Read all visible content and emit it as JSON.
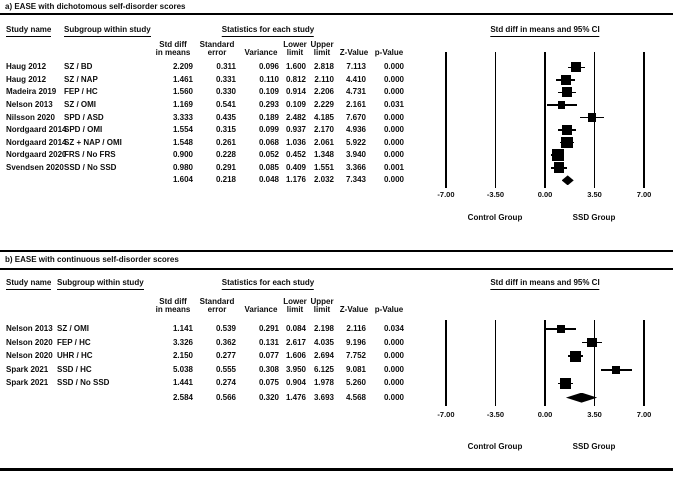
{
  "figure": {
    "panel_a": {
      "title": "a) EASE with dichotomous self-disorder scores",
      "headers": {
        "study": "Study name",
        "subgroup": "Subgroup within study",
        "stats": "Statistics for each study",
        "plot": "Std diff in means and 95% CI"
      }
    },
    "panel_b": {
      "title": "b) EASE with continuous self-disorder scores",
      "headers": {
        "study": "Study name",
        "subgroup": "Subgroup within study",
        "stats": "Statistics for each study",
        "plot": "Std diff in means and 95% CI"
      }
    },
    "stat_column_headers": [
      [
        "Std diff",
        "in means"
      ],
      [
        "Standard",
        "error"
      ],
      [
        "Variance"
      ],
      [
        "Lower",
        "limit"
      ],
      [
        "Upper",
        "limit"
      ],
      [
        "Z-Value"
      ],
      [
        "p-Value"
      ]
    ],
    "axis": {
      "tick_labels": [
        "-7.00",
        "-3.50",
        "0.00",
        "3.50",
        "7.00"
      ],
      "left_group": "Control Group",
      "right_group": "SSD Group"
    },
    "colors": {
      "ink": "#000000",
      "background": "#ffffff"
    }
  },
  "chart_data": [
    {
      "type": "forest",
      "panel": "a",
      "title": "a) EASE with dichotomous self-disorder scores",
      "x_axis_ticks": [
        -7,
        -3.5,
        0,
        3.5,
        7
      ],
      "xlim": [
        -7,
        7
      ],
      "group_labels": [
        "Control Group",
        "SSD Group"
      ],
      "rows": [
        {
          "study": "Haug 2012",
          "subgroup": "SZ / BD",
          "std_diff": 2.209,
          "std_err": 0.311,
          "variance": 0.096,
          "lower": 1.6,
          "upper": 2.818,
          "z": 7.113,
          "p": 0.0
        },
        {
          "study": "Haug 2012",
          "subgroup": "SZ / NAP",
          "std_diff": 1.461,
          "std_err": 0.331,
          "variance": 0.11,
          "lower": 0.812,
          "upper": 2.11,
          "z": 4.41,
          "p": 0.0
        },
        {
          "study": "Madeira 2019",
          "subgroup": "FEP / HC",
          "std_diff": 1.56,
          "std_err": 0.33,
          "variance": 0.109,
          "lower": 0.914,
          "upper": 2.206,
          "z": 4.731,
          "p": 0.0
        },
        {
          "study": "Nelson 2013",
          "subgroup": "SZ / OMI",
          "std_diff": 1.169,
          "std_err": 0.541,
          "variance": 0.293,
          "lower": 0.109,
          "upper": 2.229,
          "z": 2.161,
          "p": 0.031
        },
        {
          "study": "Nilsson 2020",
          "subgroup": "SPD / ASD",
          "std_diff": 3.333,
          "std_err": 0.435,
          "variance": 0.189,
          "lower": 2.482,
          "upper": 4.185,
          "z": 7.67,
          "p": 0.0
        },
        {
          "study": "Nordgaard 2014",
          "subgroup": "SPD / OMI",
          "std_diff": 1.554,
          "std_err": 0.315,
          "variance": 0.099,
          "lower": 0.937,
          "upper": 2.17,
          "z": 4.936,
          "p": 0.0
        },
        {
          "study": "Nordgaard 2014",
          "subgroup": "SZ + NAP / OMI",
          "std_diff": 1.548,
          "std_err": 0.261,
          "variance": 0.068,
          "lower": 1.036,
          "upper": 2.061,
          "z": 5.922,
          "p": 0.0
        },
        {
          "study": "Nordgaard 2020",
          "subgroup": "FRS / No FRS",
          "std_diff": 0.9,
          "std_err": 0.228,
          "variance": 0.052,
          "lower": 0.452,
          "upper": 1.348,
          "z": 3.94,
          "p": 0.0
        },
        {
          "study": "Svendsen 2020",
          "subgroup": "SSD / No SSD",
          "std_diff": 0.98,
          "std_err": 0.291,
          "variance": 0.085,
          "lower": 0.409,
          "upper": 1.551,
          "z": 3.366,
          "p": 0.001
        }
      ],
      "summary": {
        "std_diff": 1.604,
        "std_err": 0.218,
        "variance": 0.048,
        "lower": 1.176,
        "upper": 2.032,
        "z": 7.343,
        "p": 0.0
      }
    },
    {
      "type": "forest",
      "panel": "b",
      "title": "b) EASE with continuous self-disorder scores",
      "x_axis_ticks": [
        -7,
        -3.5,
        0,
        3.5,
        7
      ],
      "xlim": [
        -7,
        7
      ],
      "group_labels": [
        "Control Group",
        "SSD Group"
      ],
      "rows": [
        {
          "study": "Nelson 2013",
          "subgroup": "SZ / OMI",
          "std_diff": 1.141,
          "std_err": 0.539,
          "variance": 0.291,
          "lower": 0.084,
          "upper": 2.198,
          "z": 2.116,
          "p": 0.034
        },
        {
          "study": "Nelson 2020",
          "subgroup": "FEP / HC",
          "std_diff": 3.326,
          "std_err": 0.362,
          "variance": 0.131,
          "lower": 2.617,
          "upper": 4.035,
          "z": 9.196,
          "p": 0.0
        },
        {
          "study": "Nelson 2020",
          "subgroup": "UHR / HC",
          "std_diff": 2.15,
          "std_err": 0.277,
          "variance": 0.077,
          "lower": 1.606,
          "upper": 2.694,
          "z": 7.752,
          "p": 0.0
        },
        {
          "study": "Spark 2021",
          "subgroup": "SSD / HC",
          "std_diff": 5.038,
          "std_err": 0.555,
          "variance": 0.308,
          "lower": 3.95,
          "upper": 6.125,
          "z": 9.081,
          "p": 0.0
        },
        {
          "study": "Spark 2021",
          "subgroup": "SSD / No SSD",
          "std_diff": 1.441,
          "std_err": 0.274,
          "variance": 0.075,
          "lower": 0.904,
          "upper": 1.978,
          "z": 5.26,
          "p": 0.0
        }
      ],
      "summary": {
        "std_diff": 2.584,
        "std_err": 0.566,
        "variance": 0.32,
        "lower": 1.476,
        "upper": 3.693,
        "z": 4.568,
        "p": 0.0
      }
    }
  ]
}
